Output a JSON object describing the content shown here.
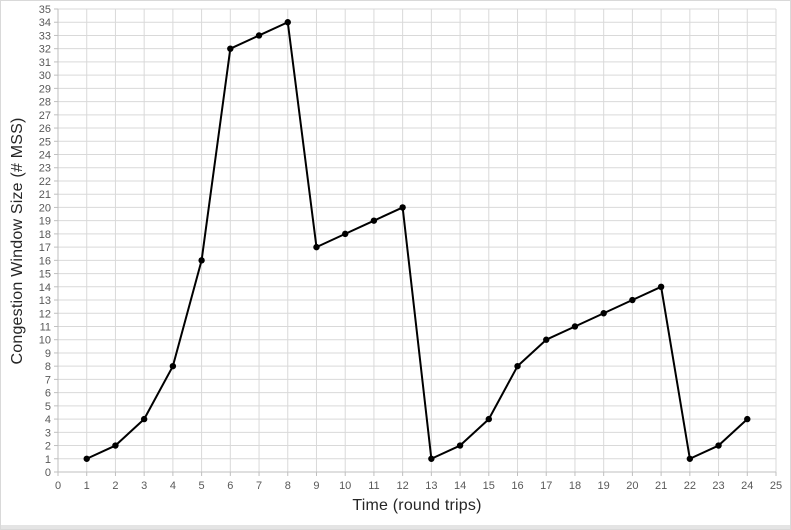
{
  "chart_data": {
    "type": "line",
    "xlabel": "Time (round trips)",
    "ylabel": "Congestion Window Size (# MSS)",
    "x": [
      1,
      2,
      3,
      4,
      5,
      6,
      7,
      8,
      9,
      10,
      11,
      12,
      13,
      14,
      15,
      16,
      17,
      18,
      19,
      20,
      21,
      22,
      23,
      24
    ],
    "y": [
      1,
      2,
      4,
      8,
      16,
      32,
      33,
      34,
      17,
      18,
      19,
      20,
      1,
      2,
      4,
      8,
      10,
      11,
      12,
      13,
      14,
      1,
      2,
      4
    ],
    "xlim": [
      0,
      25
    ],
    "ylim": [
      0,
      35
    ],
    "x_ticks": [
      0,
      1,
      2,
      3,
      4,
      5,
      6,
      7,
      8,
      9,
      10,
      11,
      12,
      13,
      14,
      15,
      16,
      17,
      18,
      19,
      20,
      21,
      22,
      23,
      24,
      25
    ],
    "y_ticks": [
      0,
      1,
      2,
      3,
      4,
      5,
      6,
      7,
      8,
      9,
      10,
      11,
      12,
      13,
      14,
      15,
      16,
      17,
      18,
      19,
      20,
      21,
      22,
      23,
      24,
      25,
      26,
      27,
      28,
      29,
      30,
      31,
      32,
      33,
      34,
      35
    ],
    "grid": true,
    "legend": "none",
    "marker": "circle",
    "line_color": "#000000",
    "marker_color": "#000000",
    "gridline_color": "#d9d9d9",
    "axis_line_color": "#bfbfbf",
    "tick_label_color": "#595959",
    "axis_title_color": "#262626",
    "background_color": "#ffffff"
  }
}
